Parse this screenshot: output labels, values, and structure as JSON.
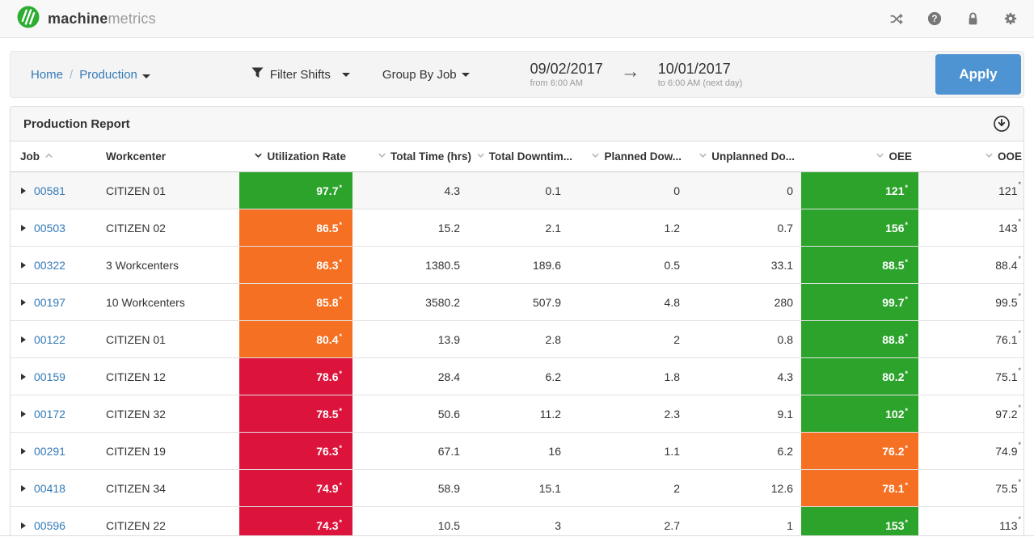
{
  "navbar": {
    "brand_bold": "machine",
    "brand_light": "metrics",
    "icons": [
      {
        "name": "shuffle-icon"
      },
      {
        "name": "help-icon"
      },
      {
        "name": "lock-icon"
      },
      {
        "name": "settings-icon"
      }
    ]
  },
  "toolbar": {
    "breadcrumb": {
      "home": "Home",
      "separator": "/",
      "current": "Production"
    },
    "filter_shifts_label": "Filter Shifts",
    "group_by_label": "Group By Job",
    "date_from": {
      "date": "09/02/2017",
      "note": "from 6:00 AM"
    },
    "date_to": {
      "date": "10/01/2017",
      "note": "to 6:00 AM (next day)"
    },
    "apply_label": "Apply"
  },
  "report": {
    "title": "Production Report",
    "footnote_marker": "*",
    "columns": [
      {
        "key": "job",
        "label": "Job",
        "align": "left",
        "caret": "up",
        "caret_style": "dim"
      },
      {
        "key": "workcenter",
        "label": "Workcenter",
        "align": "left",
        "caret": "none",
        "caret_style": "none"
      },
      {
        "key": "utilization",
        "label": "Utilization Rate",
        "align": "right",
        "caret": "down",
        "caret_style": "dark"
      },
      {
        "key": "total_time",
        "label": "Total Time (hrs)",
        "align": "right",
        "caret": "down",
        "caret_style": "dim"
      },
      {
        "key": "total_downtime",
        "label": "Total Downtim...",
        "align": "right",
        "caret": "down",
        "caret_style": "dim"
      },
      {
        "key": "planned_downtime",
        "label": "Planned Dow...",
        "align": "right",
        "caret": "down",
        "caret_style": "dim"
      },
      {
        "key": "unplanned_downtime",
        "label": "Unplanned Do...",
        "align": "right",
        "caret": "down",
        "caret_style": "dim"
      },
      {
        "key": "oee",
        "label": "OEE",
        "align": "right",
        "caret": "down",
        "caret_style": "dim"
      },
      {
        "key": "ooe",
        "label": "OOE",
        "align": "right",
        "caret": "down",
        "caret_style": "dim"
      }
    ],
    "rows": [
      {
        "job": "00581",
        "workcenter": "CITIZEN 01",
        "utilization": {
          "value": "97.7",
          "color": "green"
        },
        "total_time": "4.3",
        "total_downtime": "0.1",
        "planned_downtime": "0",
        "unplanned_downtime": "0",
        "oee": {
          "value": "121",
          "color": "green"
        },
        "ooe": "121",
        "highlighted": true
      },
      {
        "job": "00503",
        "workcenter": "CITIZEN 02",
        "utilization": {
          "value": "86.5",
          "color": "orange"
        },
        "total_time": "15.2",
        "total_downtime": "2.1",
        "planned_downtime": "1.2",
        "unplanned_downtime": "0.7",
        "oee": {
          "value": "156",
          "color": "green"
        },
        "ooe": "143",
        "highlighted": false
      },
      {
        "job": "00322",
        "workcenter": "3 Workcenters",
        "utilization": {
          "value": "86.3",
          "color": "orange"
        },
        "total_time": "1380.5",
        "total_downtime": "189.6",
        "planned_downtime": "0.5",
        "unplanned_downtime": "33.1",
        "oee": {
          "value": "88.5",
          "color": "green"
        },
        "ooe": "88.4",
        "highlighted": false
      },
      {
        "job": "00197",
        "workcenter": "10 Workcenters",
        "utilization": {
          "value": "85.8",
          "color": "orange"
        },
        "total_time": "3580.2",
        "total_downtime": "507.9",
        "planned_downtime": "4.8",
        "unplanned_downtime": "280",
        "oee": {
          "value": "99.7",
          "color": "green"
        },
        "ooe": "99.5",
        "highlighted": false
      },
      {
        "job": "00122",
        "workcenter": "CITIZEN 01",
        "utilization": {
          "value": "80.4",
          "color": "orange"
        },
        "total_time": "13.9",
        "total_downtime": "2.8",
        "planned_downtime": "2",
        "unplanned_downtime": "0.8",
        "oee": {
          "value": "88.8",
          "color": "green"
        },
        "ooe": "76.1",
        "highlighted": false
      },
      {
        "job": "00159",
        "workcenter": "CITIZEN 12",
        "utilization": {
          "value": "78.6",
          "color": "red"
        },
        "total_time": "28.4",
        "total_downtime": "6.2",
        "planned_downtime": "1.8",
        "unplanned_downtime": "4.3",
        "oee": {
          "value": "80.2",
          "color": "green"
        },
        "ooe": "75.1",
        "highlighted": false
      },
      {
        "job": "00172",
        "workcenter": "CITIZEN 32",
        "utilization": {
          "value": "78.5",
          "color": "red"
        },
        "total_time": "50.6",
        "total_downtime": "11.2",
        "planned_downtime": "2.3",
        "unplanned_downtime": "9.1",
        "oee": {
          "value": "102",
          "color": "green"
        },
        "ooe": "97.2",
        "highlighted": false
      },
      {
        "job": "00291",
        "workcenter": "CITIZEN 19",
        "utilization": {
          "value": "76.3",
          "color": "red"
        },
        "total_time": "67.1",
        "total_downtime": "16",
        "planned_downtime": "1.1",
        "unplanned_downtime": "6.2",
        "oee": {
          "value": "76.2",
          "color": "orange"
        },
        "ooe": "74.9",
        "highlighted": false
      },
      {
        "job": "00418",
        "workcenter": "CITIZEN 34",
        "utilization": {
          "value": "74.9",
          "color": "red"
        },
        "total_time": "58.9",
        "total_downtime": "15.1",
        "planned_downtime": "2",
        "unplanned_downtime": "12.6",
        "oee": {
          "value": "78.1",
          "color": "orange"
        },
        "ooe": "75.5",
        "highlighted": false
      },
      {
        "job": "00596",
        "workcenter": "CITIZEN 22",
        "utilization": {
          "value": "74.3",
          "color": "red"
        },
        "total_time": "10.5",
        "total_downtime": "3",
        "planned_downtime": "2.7",
        "unplanned_downtime": "1",
        "oee": {
          "value": "153",
          "color": "green"
        },
        "ooe": "113",
        "highlighted": false
      }
    ]
  },
  "colors": {
    "green": "#2ca42c",
    "orange": "#f57022",
    "red": "#dc143c",
    "link_blue": "#337ab7",
    "apply_blue": "#4f94d2",
    "logo_green": "#2ead33"
  }
}
